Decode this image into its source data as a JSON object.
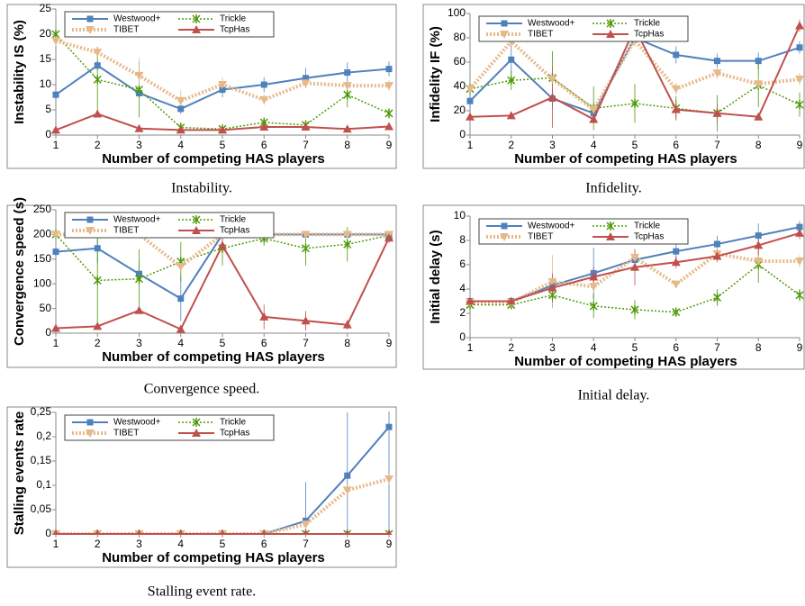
{
  "chart_data": [
    {
      "type": "line",
      "caption": "Instability.",
      "xlabel": "Number of competing HAS players",
      "ylabel": "Instability IS (%)",
      "x": [
        1,
        2,
        3,
        4,
        5,
        6,
        7,
        8,
        9
      ],
      "xlim": [
        1,
        9
      ],
      "xticks": [
        1,
        2,
        3,
        4,
        5,
        6,
        7,
        8,
        9
      ],
      "ylim": [
        0,
        25
      ],
      "yticks": [
        0,
        5,
        10,
        15,
        20,
        25
      ],
      "series": [
        {
          "name": "Westwood+",
          "color": "#4f81bd",
          "values": [
            8,
            13.8,
            8.3,
            5.2,
            9,
            10,
            11.3,
            12.4,
            13.1
          ],
          "errors": [
            1,
            1,
            1,
            1,
            1.5,
            1.5,
            2,
            2,
            1.5
          ]
        },
        {
          "name": "Trickle",
          "color": "#4e9a06",
          "values": [
            20,
            11,
            9,
            1.5,
            1.2,
            2.5,
            2,
            8,
            4.3
          ],
          "errors": [
            0.5,
            6.5,
            5.5,
            1,
            0.5,
            1,
            1,
            2.5,
            1
          ]
        },
        {
          "name": "TIBET",
          "color": "#e6b98a",
          "values": [
            18.7,
            16.4,
            11.8,
            6.8,
            10,
            7,
            10.3,
            9.8,
            9.8
          ],
          "errors": [
            1,
            1,
            3.5,
            2,
            1.5,
            1,
            1,
            1,
            1
          ]
        },
        {
          "name": "TcpHas",
          "color": "#c0504d",
          "values": [
            1,
            4.2,
            1.3,
            1,
            1,
            1.6,
            1.6,
            1.2,
            1.7
          ],
          "errors": [
            0.3,
            0.3,
            0.3,
            0.3,
            0.3,
            0.3,
            0.3,
            0.3,
            0.3
          ]
        }
      ]
    },
    {
      "type": "line",
      "caption": "Infidelity.",
      "xlabel": "Number of competing HAS players",
      "ylabel": "Infidelity IF (%)",
      "x": [
        1,
        2,
        3,
        4,
        5,
        6,
        7,
        8,
        9
      ],
      "xlim": [
        1,
        9
      ],
      "xticks": [
        1,
        2,
        3,
        4,
        5,
        6,
        7,
        8,
        9
      ],
      "ylim": [
        0,
        100
      ],
      "yticks": [
        0,
        20,
        40,
        60,
        80,
        100
      ],
      "series": [
        {
          "name": "Westwood+",
          "color": "#4f81bd",
          "values": [
            28,
            62,
            30,
            18,
            80,
            66,
            61,
            61,
            72
          ],
          "errors": [
            5,
            12,
            8,
            5,
            5,
            7,
            6,
            7,
            5
          ]
        },
        {
          "name": "Trickle",
          "color": "#4e9a06",
          "values": [
            38,
            45,
            47,
            22,
            26,
            22,
            18,
            41,
            25
          ],
          "errors": [
            4,
            8,
            22,
            18,
            16,
            10,
            15,
            18,
            10
          ]
        },
        {
          "name": "TIBET",
          "color": "#e6b98a",
          "values": [
            38,
            77,
            46,
            21,
            78,
            38,
            51,
            42,
            46
          ],
          "errors": [
            3,
            3,
            8,
            3,
            5,
            5,
            5,
            5,
            5
          ]
        },
        {
          "name": "TcpHas",
          "color": "#c0504d",
          "values": [
            15,
            16,
            31,
            13,
            88,
            21,
            18,
            15,
            90
          ],
          "errors": [
            2,
            2,
            25,
            3,
            8,
            8,
            8,
            3,
            5
          ]
        }
      ]
    },
    {
      "type": "line",
      "caption": "Convergence speed.",
      "xlabel": "Number of competing HAS players",
      "ylabel": "Convergence speed (s)",
      "x": [
        1,
        2,
        3,
        4,
        5,
        6,
        7,
        8,
        9
      ],
      "xlim": [
        1,
        9
      ],
      "xticks": [
        1,
        2,
        3,
        4,
        5,
        6,
        7,
        8,
        9
      ],
      "ylim": [
        0,
        250
      ],
      "yticks": [
        0,
        50,
        100,
        150,
        200,
        250
      ],
      "series": [
        {
          "name": "Westwood+",
          "color": "#4f81bd",
          "values": [
            165,
            172,
            120,
            70,
            200,
            200,
            200,
            200,
            200
          ],
          "errors": [
            10,
            30,
            25,
            45,
            3,
            3,
            3,
            3,
            3
          ]
        },
        {
          "name": "Trickle",
          "color": "#4e9a06",
          "values": [
            200,
            107,
            110,
            145,
            172,
            192,
            172,
            180,
            198
          ],
          "errors": [
            3,
            95,
            60,
            40,
            35,
            15,
            35,
            35,
            5
          ]
        },
        {
          "name": "TIBET",
          "color": "#e6b98a",
          "values": [
            200,
            200,
            200,
            135,
            200,
            200,
            200,
            200,
            200
          ],
          "errors": [
            3,
            3,
            3,
            10,
            3,
            3,
            3,
            3,
            3
          ]
        },
        {
          "name": "TcpHas",
          "color": "#c0504d",
          "values": [
            10,
            14,
            46,
            8,
            178,
            33,
            25,
            17,
            193
          ],
          "errors": [
            3,
            5,
            5,
            5,
            15,
            25,
            20,
            10,
            10
          ]
        }
      ]
    },
    {
      "type": "line",
      "caption": "Initial delay.",
      "xlabel": "Number of competing HAS players",
      "ylabel": "Initial delay (s)",
      "x": [
        1,
        2,
        3,
        4,
        5,
        6,
        7,
        8,
        9
      ],
      "xlim": [
        1,
        9
      ],
      "xticks": [
        1,
        2,
        3,
        4,
        5,
        6,
        7,
        8,
        9
      ],
      "ylim": [
        0,
        10
      ],
      "yticks": [
        0,
        2,
        4,
        6,
        8,
        10
      ],
      "series": [
        {
          "name": "Westwood+",
          "color": "#4f81bd",
          "values": [
            3,
            3,
            4.3,
            5.3,
            6.4,
            7.1,
            7.7,
            8.4,
            9.1
          ],
          "errors": [
            0.2,
            0.2,
            0.7,
            2.1,
            0.7,
            0.6,
            0.7,
            1,
            0.5
          ]
        },
        {
          "name": "Trickle",
          "color": "#4e9a06",
          "values": [
            2.7,
            2.7,
            3.5,
            2.6,
            2.3,
            2.1,
            3.3,
            6,
            3.5
          ],
          "errors": [
            0.2,
            0.2,
            1,
            1,
            0.8,
            0.3,
            0.7,
            1.5,
            0.5
          ]
        },
        {
          "name": "TIBET",
          "color": "#e6b98a",
          "values": [
            2.9,
            2.9,
            4.6,
            4.2,
            6.6,
            4.4,
            6.9,
            6.3,
            6.3
          ],
          "errors": [
            0.2,
            0.2,
            2.2,
            0.5,
            0.5,
            0.3,
            0.5,
            0.5,
            0.5
          ]
        },
        {
          "name": "TcpHas",
          "color": "#c0504d",
          "values": [
            3,
            3,
            4.1,
            5,
            5.8,
            6.2,
            6.7,
            7.6,
            8.6
          ],
          "errors": [
            0.2,
            0.2,
            1.2,
            0.8,
            1.5,
            0.5,
            0.5,
            0.8,
            0.5
          ]
        }
      ]
    },
    {
      "type": "line",
      "caption": "Stalling event rate.",
      "xlabel": "Number of competing HAS players",
      "ylabel": "Stalling events rate",
      "x": [
        1,
        2,
        3,
        4,
        5,
        6,
        7,
        8,
        9
      ],
      "xlim": [
        1,
        9
      ],
      "xticks": [
        1,
        2,
        3,
        4,
        5,
        6,
        7,
        8,
        9
      ],
      "ylim": [
        0,
        0.25
      ],
      "yticks": [
        0,
        {
          "value": 0.05,
          "label": "0,05"
        },
        {
          "value": 0.1,
          "label": "0,1"
        },
        {
          "value": 0.15,
          "label": "0,15"
        },
        {
          "value": 0.2,
          "label": "0,2"
        },
        {
          "value": 0.25,
          "label": "0,25"
        }
      ],
      "series": [
        {
          "name": "Westwood+",
          "color": "#4f81bd",
          "values": [
            0,
            0,
            0,
            0,
            0,
            0,
            0.027,
            0.12,
            0.22
          ],
          "errors": [
            0,
            0,
            0,
            0,
            0,
            0,
            0.08,
            0.13,
            0.22
          ]
        },
        {
          "name": "Trickle",
          "color": "#4e9a06",
          "values": [
            0,
            0,
            0,
            0,
            0,
            0,
            0,
            0,
            0
          ],
          "errors": [
            0,
            0,
            0,
            0,
            0,
            0,
            0,
            0,
            0
          ]
        },
        {
          "name": "TIBET",
          "color": "#e6b98a",
          "values": [
            0,
            0,
            0,
            0,
            0,
            0,
            0.02,
            0.09,
            0.113
          ],
          "errors": [
            0,
            0,
            0,
            0,
            0,
            0,
            0.01,
            0.01,
            0.01
          ]
        },
        {
          "name": "TcpHas",
          "color": "#c0504d",
          "values": [
            0,
            0,
            0,
            0,
            0,
            0,
            0,
            0,
            0
          ],
          "errors": [
            0,
            0,
            0,
            0,
            0,
            0,
            0,
            0,
            0
          ]
        }
      ]
    }
  ]
}
